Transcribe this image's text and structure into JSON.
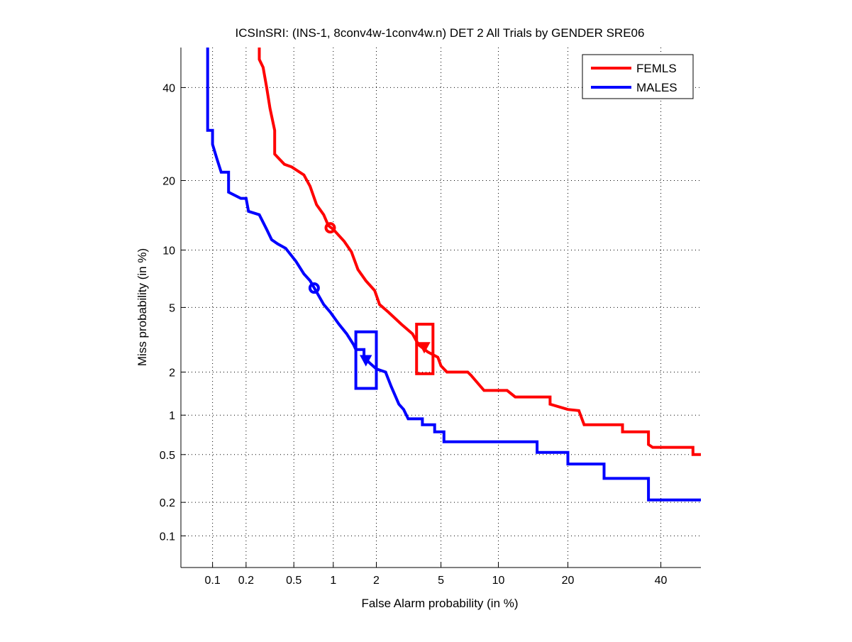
{
  "chart_data": {
    "type": "line",
    "scale": "probit",
    "title": "ICSInSRI: (INS-1, 8conv4w-1conv4w.n) DET 2 All Trials by GENDER SRE06",
    "xlabel": "False Alarm probability (in %)",
    "ylabel": "Miss probability (in %)",
    "xlim": [
      0.05,
      50
    ],
    "ylim": [
      0.05,
      50
    ],
    "grid": true,
    "xticks": [
      0.1,
      0.2,
      0.5,
      1,
      2,
      5,
      10,
      20,
      40
    ],
    "xtick_labels": [
      "0.1",
      "0.2",
      "0.5",
      "1",
      "2",
      "5",
      "10",
      "20",
      "40"
    ],
    "yticks": [
      0.1,
      0.2,
      0.5,
      1,
      2,
      5,
      10,
      20,
      40
    ],
    "ytick_labels": [
      "0.1",
      "0.2",
      "0.5",
      "1",
      "2",
      "5",
      "10",
      "20",
      "40"
    ],
    "legend_position": "top-right",
    "series": [
      {
        "name": "FEMLS",
        "color": "#ff0000",
        "points": [
          [
            0.26,
            50
          ],
          [
            0.26,
            47
          ],
          [
            0.28,
            45
          ],
          [
            0.3,
            40
          ],
          [
            0.32,
            35
          ],
          [
            0.35,
            30
          ],
          [
            0.35,
            25
          ],
          [
            0.42,
            23
          ],
          [
            0.48,
            22.5
          ],
          [
            0.6,
            21
          ],
          [
            0.67,
            19
          ],
          [
            0.75,
            16
          ],
          [
            0.85,
            14.5
          ],
          [
            0.92,
            13
          ],
          [
            1.0,
            12.5
          ],
          [
            1.2,
            11
          ],
          [
            1.35,
            9.8
          ],
          [
            1.5,
            8
          ],
          [
            1.7,
            7
          ],
          [
            1.95,
            6.2
          ],
          [
            2.1,
            5.2
          ],
          [
            2.4,
            4.7
          ],
          [
            2.9,
            4.0
          ],
          [
            3.4,
            3.5
          ],
          [
            3.7,
            3.0
          ],
          [
            4.2,
            2.7
          ],
          [
            4.8,
            2.5
          ],
          [
            5.0,
            2.2
          ],
          [
            5.4,
            2.0
          ],
          [
            7.0,
            2.0
          ],
          [
            7.3,
            1.9
          ],
          [
            8.5,
            1.5
          ],
          [
            11,
            1.5
          ],
          [
            12,
            1.35
          ],
          [
            17,
            1.35
          ],
          [
            17,
            1.2
          ],
          [
            20,
            1.1
          ],
          [
            22,
            1.08
          ],
          [
            23,
            0.85
          ],
          [
            31,
            0.85
          ],
          [
            31,
            0.75
          ],
          [
            37,
            0.75
          ],
          [
            37,
            0.6
          ],
          [
            38,
            0.57
          ],
          [
            48,
            0.57
          ],
          [
            48,
            0.5
          ],
          [
            50,
            0.5
          ]
        ],
        "min_dcf_point": [
          0.95,
          12.7
        ],
        "actual_dcf_point": [
          4.0,
          2.9
        ],
        "confidence_box": {
          "x": [
            3.6,
            4.5
          ],
          "y": [
            1.95,
            4.0
          ]
        }
      },
      {
        "name": "MALES",
        "color": "#0000ff",
        "points": [
          [
            0.09,
            50
          ],
          [
            0.09,
            30
          ],
          [
            0.1,
            30
          ],
          [
            0.1,
            27
          ],
          [
            0.11,
            24
          ],
          [
            0.12,
            21.5
          ],
          [
            0.14,
            21.5
          ],
          [
            0.14,
            18
          ],
          [
            0.18,
            17
          ],
          [
            0.2,
            17
          ],
          [
            0.21,
            15
          ],
          [
            0.26,
            14.5
          ],
          [
            0.3,
            12.5
          ],
          [
            0.33,
            11.2
          ],
          [
            0.37,
            10.7
          ],
          [
            0.43,
            10.2
          ],
          [
            0.52,
            8.8
          ],
          [
            0.6,
            7.6
          ],
          [
            0.67,
            7
          ],
          [
            0.75,
            6.1
          ],
          [
            0.85,
            5.2
          ],
          [
            0.95,
            4.7
          ],
          [
            1.1,
            4.0
          ],
          [
            1.25,
            3.5
          ],
          [
            1.4,
            3.0
          ],
          [
            1.45,
            2.8
          ],
          [
            1.65,
            2.8
          ],
          [
            1.65,
            2.5
          ],
          [
            1.8,
            2.3
          ],
          [
            2.0,
            2.1
          ],
          [
            2.3,
            2.0
          ],
          [
            2.5,
            1.6
          ],
          [
            2.8,
            1.2
          ],
          [
            3.0,
            1.1
          ],
          [
            3.2,
            0.94
          ],
          [
            3.9,
            0.94
          ],
          [
            3.9,
            0.85
          ],
          [
            4.6,
            0.85
          ],
          [
            4.6,
            0.75
          ],
          [
            5.2,
            0.75
          ],
          [
            5.2,
            0.63
          ],
          [
            15,
            0.63
          ],
          [
            15,
            0.52
          ],
          [
            20,
            0.52
          ],
          [
            20,
            0.42
          ],
          [
            27,
            0.42
          ],
          [
            27,
            0.32
          ],
          [
            37,
            0.32
          ],
          [
            37,
            0.21
          ],
          [
            50,
            0.21
          ]
        ],
        "min_dcf_point": [
          0.72,
          6.4
        ],
        "actual_dcf_point": [
          1.7,
          2.4
        ],
        "confidence_box": {
          "x": [
            1.45,
            2.0
          ],
          "y": [
            1.55,
            3.6
          ]
        }
      }
    ]
  }
}
